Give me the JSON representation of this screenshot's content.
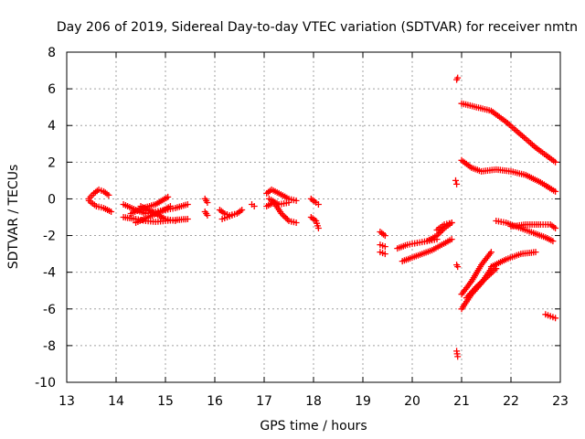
{
  "chart_data": {
    "type": "scatter",
    "title": "Day 206 of 2019, Sidereal Day-to-day VTEC variation (SDTVAR) for receiver nmtn",
    "xlabel": "GPS time / hours",
    "ylabel": "SDTVAR / TECUs",
    "xlim": [
      13,
      23
    ],
    "ylim": [
      -10,
      8
    ],
    "xticks": [
      "13",
      "14",
      "15",
      "16",
      "17",
      "18",
      "19",
      "20",
      "21",
      "22",
      "23"
    ],
    "yticks": [
      "-10",
      "-8",
      "-6",
      "-4",
      "-2",
      "0",
      "2",
      "4",
      "6",
      "8"
    ],
    "grid": true,
    "marker": "plus",
    "color": "#ff0000",
    "segments": [
      {
        "x": [
          13.45,
          13.55,
          13.65,
          13.75,
          13.85
        ],
        "y": [
          0.0,
          0.3,
          0.5,
          0.4,
          0.2
        ]
      },
      {
        "x": [
          13.45,
          13.6,
          13.75,
          13.9
        ],
        "y": [
          -0.1,
          -0.4,
          -0.5,
          -0.7
        ]
      },
      {
        "x": [
          14.15,
          14.4,
          14.6,
          14.8,
          15.0,
          15.2,
          15.45
        ],
        "y": [
          -0.3,
          -0.6,
          -0.8,
          -0.7,
          -0.6,
          -0.5,
          -0.3
        ]
      },
      {
        "x": [
          14.15,
          14.4,
          14.6,
          14.8,
          15.0,
          15.2,
          15.45
        ],
        "y": [
          -1.0,
          -1.1,
          -1.2,
          -1.25,
          -1.2,
          -1.15,
          -1.1
        ]
      },
      {
        "x": [
          14.3,
          14.55,
          14.8,
          15.05
        ],
        "y": [
          -0.8,
          -0.5,
          -0.3,
          0.1
        ]
      },
      {
        "x": [
          14.4,
          14.65,
          14.9,
          15.1
        ],
        "y": [
          -1.3,
          -1.0,
          -0.7,
          -0.4
        ]
      },
      {
        "x": [
          14.5,
          14.8,
          15.0,
          15.2
        ],
        "y": [
          -0.4,
          -0.8,
          -1.1,
          -1.2
        ]
      },
      {
        "x": [
          15.8,
          15.85
        ],
        "y": [
          0.0,
          -0.2
        ]
      },
      {
        "x": [
          15.8,
          15.85
        ],
        "y": [
          -0.7,
          -0.9
        ]
      },
      {
        "x": [
          16.1,
          16.2,
          16.3,
          16.45,
          16.55
        ],
        "y": [
          -0.6,
          -0.8,
          -0.9,
          -0.8,
          -0.6
        ]
      },
      {
        "x": [
          16.15,
          16.25,
          16.35
        ],
        "y": [
          -1.1,
          -1.0,
          -0.9
        ]
      },
      {
        "x": [
          16.75,
          16.8
        ],
        "y": [
          -0.3,
          -0.4
        ]
      },
      {
        "x": [
          17.05,
          17.15,
          17.3,
          17.5,
          17.65
        ],
        "y": [
          0.3,
          0.5,
          0.3,
          0.0,
          -0.1
        ]
      },
      {
        "x": [
          17.05,
          17.2,
          17.35,
          17.5,
          17.65
        ],
        "y": [
          -0.4,
          -0.2,
          -0.8,
          -1.2,
          -1.3
        ]
      },
      {
        "x": [
          17.1,
          17.3,
          17.5
        ],
        "y": [
          0.0,
          -0.3,
          -0.2
        ]
      },
      {
        "x": [
          17.95,
          18.05,
          18.1
        ],
        "y": [
          0.0,
          -0.2,
          -0.3
        ]
      },
      {
        "x": [
          17.95,
          18.05,
          18.1
        ],
        "y": [
          -1.0,
          -1.2,
          -1.6
        ]
      },
      {
        "x": [
          19.35,
          19.45
        ],
        "y": [
          -1.8,
          -2.0
        ]
      },
      {
        "x": [
          19.35,
          19.45
        ],
        "y": [
          -2.5,
          -2.6
        ]
      },
      {
        "x": [
          19.35,
          19.45
        ],
        "y": [
          -2.9,
          -3.0
        ]
      },
      {
        "x": [
          19.7,
          19.9,
          20.1,
          20.3,
          20.5
        ],
        "y": [
          -2.7,
          -2.5,
          -2.4,
          -2.3,
          -2.2
        ]
      },
      {
        "x": [
          19.8,
          20.0,
          20.2,
          20.4,
          20.6,
          20.8
        ],
        "y": [
          -3.4,
          -3.2,
          -3.0,
          -2.8,
          -2.5,
          -2.2
        ]
      },
      {
        "x": [
          20.3,
          20.5,
          20.65,
          20.8
        ],
        "y": [
          -2.3,
          -2.0,
          -1.6,
          -1.3
        ]
      },
      {
        "x": [
          20.5,
          20.65,
          20.8
        ],
        "y": [
          -1.7,
          -1.4,
          -1.3
        ]
      },
      {
        "x": [
          20.9,
          20.92
        ],
        "y": [
          6.5,
          6.6
        ]
      },
      {
        "x": [
          20.88,
          20.9
        ],
        "y": [
          1.0,
          0.8
        ]
      },
      {
        "x": [
          20.9,
          20.92
        ],
        "y": [
          -3.6,
          -3.7
        ]
      },
      {
        "x": [
          20.9,
          20.92
        ],
        "y": [
          -8.3,
          -8.6
        ]
      },
      {
        "x": [
          21.0,
          21.3,
          21.6,
          21.9,
          22.2,
          22.5,
          22.75,
          22.9
        ],
        "y": [
          5.2,
          5.0,
          4.8,
          4.2,
          3.5,
          2.8,
          2.3,
          2.0
        ]
      },
      {
        "x": [
          21.0,
          21.2,
          21.4,
          21.7,
          22.0,
          22.3,
          22.6,
          22.9
        ],
        "y": [
          2.1,
          1.7,
          1.5,
          1.6,
          1.5,
          1.3,
          0.9,
          0.4
        ]
      },
      {
        "x": [
          21.7,
          21.9,
          22.2,
          22.5,
          22.7,
          22.85
        ],
        "y": [
          -1.2,
          -1.3,
          -1.6,
          -1.9,
          -2.1,
          -2.3
        ]
      },
      {
        "x": [
          22.0,
          22.3,
          22.6,
          22.8,
          22.9
        ],
        "y": [
          -1.5,
          -1.4,
          -1.4,
          -1.4,
          -1.6
        ]
      },
      {
        "x": [
          21.0,
          21.2,
          21.4,
          21.6
        ],
        "y": [
          -5.2,
          -4.5,
          -3.6,
          -2.9
        ]
      },
      {
        "x": [
          21.0,
          21.2,
          21.4,
          21.6
        ],
        "y": [
          -6.0,
          -5.2,
          -4.6,
          -3.8
        ]
      },
      {
        "x": [
          21.1,
          21.3,
          21.5,
          21.7
        ],
        "y": [
          -5.4,
          -4.8,
          -4.3,
          -3.8
        ]
      },
      {
        "x": [
          21.6,
          21.9,
          22.2,
          22.5
        ],
        "y": [
          -3.7,
          -3.3,
          -3.0,
          -2.9
        ]
      },
      {
        "x": [
          22.7,
          22.8,
          22.9
        ],
        "y": [
          -6.3,
          -6.4,
          -6.5
        ]
      }
    ]
  }
}
